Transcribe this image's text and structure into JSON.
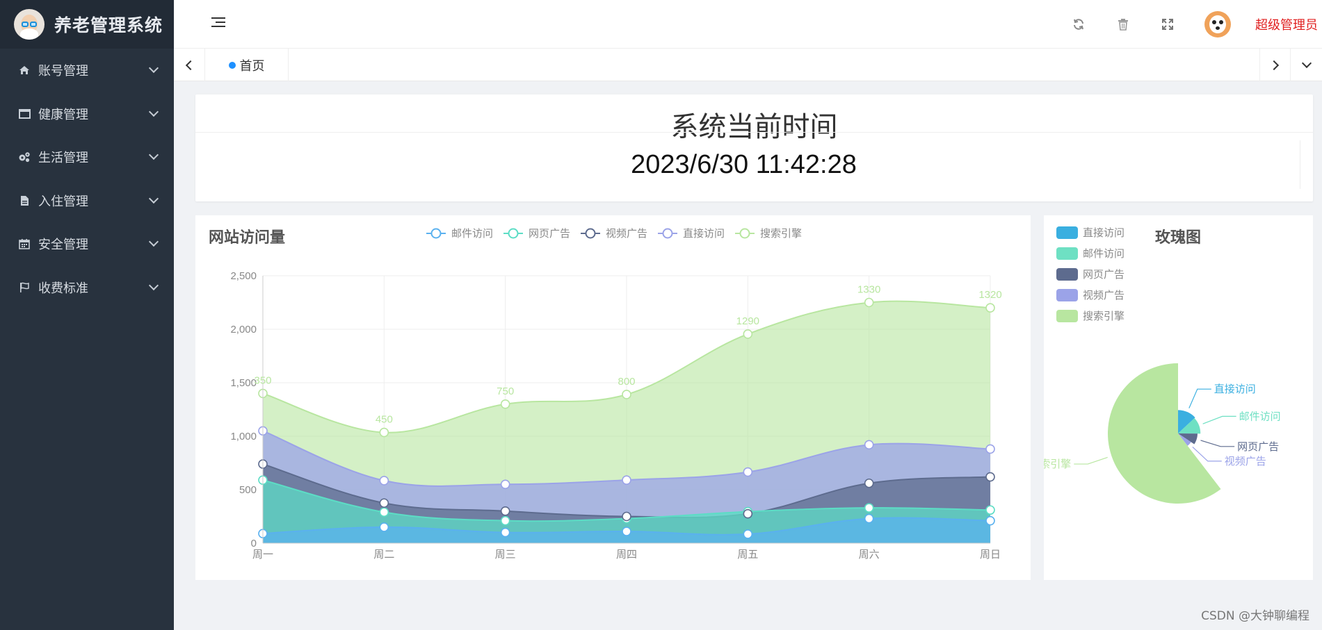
{
  "app": {
    "title": "养老管理系统",
    "logo_icon": "elderly-avatar-icon"
  },
  "sidebar": {
    "items": [
      {
        "label": "账号管理",
        "icon": "home-icon"
      },
      {
        "label": "健康管理",
        "icon": "window-icon"
      },
      {
        "label": "生活管理",
        "icon": "gears-icon"
      },
      {
        "label": "入住管理",
        "icon": "document-icon"
      },
      {
        "label": "安全管理",
        "icon": "calendar-icon"
      },
      {
        "label": "收费标准",
        "icon": "flag-icon"
      }
    ]
  },
  "header": {
    "icons": [
      "refresh-icon",
      "trash-icon",
      "fullscreen-icon"
    ],
    "user_name": "超级管理员"
  },
  "tabs": {
    "items": [
      {
        "label": "首页",
        "active": true
      }
    ]
  },
  "time_card": {
    "title": "系统当前时间",
    "value": "2023/6/30 11:42:28"
  },
  "watermark": "CSDN @大钟聊编程",
  "chart_data": [
    {
      "type": "area",
      "stacked": true,
      "smooth": true,
      "title": "网站访问量",
      "legend": [
        "邮件访问",
        "网页广告",
        "视频广告",
        "直接访问",
        "搜索引擎"
      ],
      "legend_position": "top",
      "categories": [
        "周一",
        "周二",
        "周三",
        "周四",
        "周五",
        "周六",
        "周日"
      ],
      "ylim": [
        0,
        2500
      ],
      "yticks": [
        "0",
        "500",
        "1,000",
        "1,500",
        "2,000",
        "2,500"
      ],
      "grid": true,
      "colors": {
        "邮件访问": "#5ab1ef",
        "网页广告": "#5cddc5",
        "视频广告": "#5d6b8e",
        "直接访问": "#9ba3e8",
        "搜索引擎": "#b8e6a0"
      },
      "series": [
        {
          "name": "邮件访问",
          "values": [
            90,
            150,
            100,
            110,
            85,
            230,
            210
          ]
        },
        {
          "name": "网页广告",
          "values": [
            500,
            140,
            110,
            120,
            210,
            100,
            100
          ]
        },
        {
          "name": "视频广告",
          "values": [
            150,
            85,
            90,
            20,
            -20,
            230,
            310
          ]
        },
        {
          "name": "直接访问",
          "values": [
            310,
            210,
            250,
            340,
            390,
            360,
            260
          ]
        },
        {
          "name": "搜索引擎",
          "values": [
            350,
            450,
            750,
            800,
            1290,
            1330,
            1320
          ],
          "show_labels": true
        }
      ]
    },
    {
      "type": "pie",
      "rose_type": "radius",
      "title": "玫瑰图",
      "legend_position": "top-left",
      "legend": [
        "直接访问",
        "邮件访问",
        "网页广告",
        "视频广告",
        "搜索引擎"
      ],
      "slices": [
        {
          "name": "直接访问",
          "value": 335,
          "color": "#3aafe0",
          "label": "直接访问"
        },
        {
          "name": "邮件访问",
          "value": 310,
          "color": "#6ee0c3",
          "label": "邮件访问"
        },
        {
          "name": "网页广告",
          "value": 234,
          "color": "#5d6b8e",
          "label": "网页广告"
        },
        {
          "name": "视频广告",
          "value": 135,
          "color": "#9ba3e8",
          "label": "视频广告"
        },
        {
          "name": "搜索引擎",
          "value": 1548,
          "color": "#b8e6a0",
          "label": "搜索引擎"
        }
      ]
    }
  ]
}
